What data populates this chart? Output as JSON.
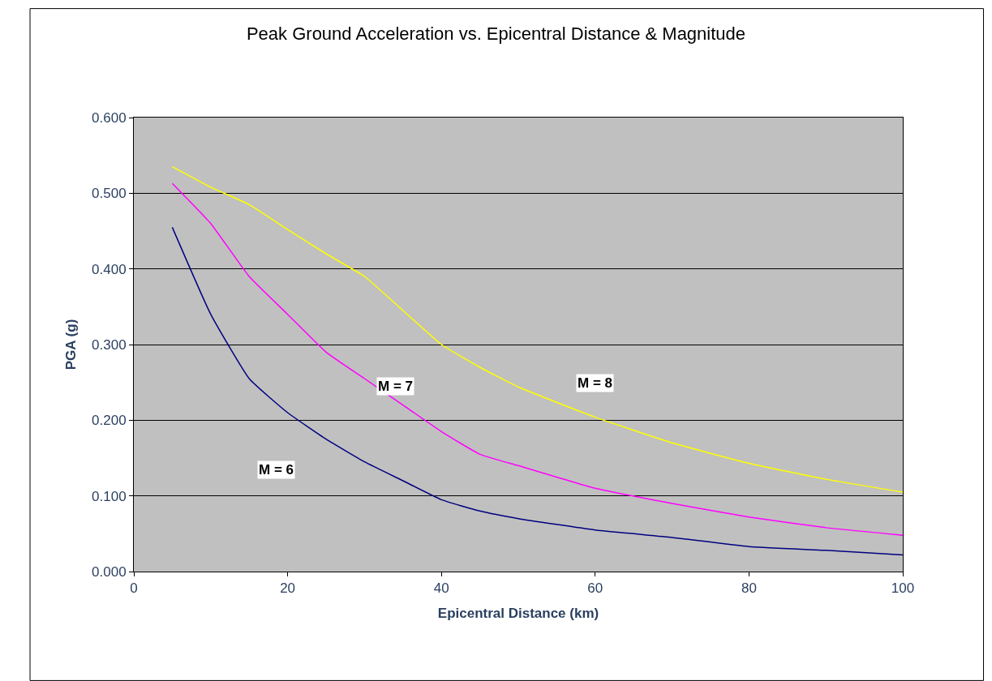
{
  "chart_data": {
    "type": "line",
    "title": "Peak Ground Acceleration vs. Epicentral Distance & Magnitude",
    "xlabel": "Epicentral Distance (km)",
    "ylabel": "PGA (g)",
    "x": [
      5,
      10,
      15,
      20,
      25,
      30,
      35,
      40,
      45,
      50,
      60,
      70,
      80,
      90,
      100
    ],
    "series": [
      {
        "name": "M = 6",
        "color": "#000080",
        "values": [
          0.455,
          0.34,
          0.255,
          0.21,
          0.175,
          0.145,
          0.12,
          0.095,
          0.08,
          0.07,
          0.055,
          0.045,
          0.033,
          0.028,
          0.022
        ]
      },
      {
        "name": "M = 7",
        "color": "#ff00ff",
        "values": [
          0.513,
          0.46,
          0.39,
          0.34,
          0.29,
          0.255,
          0.22,
          0.185,
          0.155,
          0.14,
          0.11,
          0.09,
          0.072,
          0.058,
          0.048
        ]
      },
      {
        "name": "M = 8",
        "color": "#ffff00",
        "values": [
          0.535,
          0.508,
          0.485,
          0.452,
          0.42,
          0.39,
          0.345,
          0.3,
          0.27,
          0.244,
          0.204,
          0.17,
          0.143,
          0.122,
          0.105
        ]
      }
    ],
    "xlim": [
      0,
      100
    ],
    "xticks": [
      0,
      20,
      40,
      60,
      80,
      100
    ],
    "ylim": [
      0,
      0.6
    ],
    "yticks": [
      {
        "value": 0,
        "label": "0.000"
      },
      {
        "value": 0.1,
        "label": "0.100"
      },
      {
        "value": 0.2,
        "label": "0.200"
      },
      {
        "value": 0.3,
        "label": "0.300"
      },
      {
        "value": 0.4,
        "label": "0.400"
      },
      {
        "value": 0.5,
        "label": "0.500"
      },
      {
        "value": 0.6,
        "label": "0.600"
      }
    ],
    "grid": "y",
    "legend": false,
    "marker": "none",
    "line_style": "solid"
  }
}
